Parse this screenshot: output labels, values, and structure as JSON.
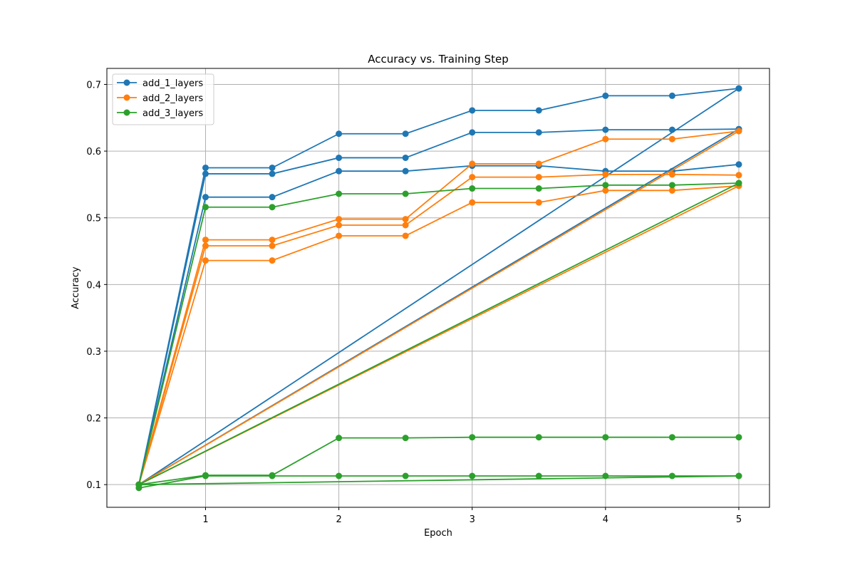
{
  "chart_data": {
    "type": "line",
    "title": "Accuracy vs. Training Step",
    "xlabel": "Epoch",
    "ylabel": "Accuracy",
    "xlim": [
      0.26,
      5.23
    ],
    "ylim": [
      0.066,
      0.724
    ],
    "xticks": [
      1,
      2,
      3,
      4,
      5
    ],
    "yticks": [
      0.1,
      0.2,
      0.3,
      0.4,
      0.5,
      0.6,
      0.7
    ],
    "grid": true,
    "legend_placement": "top-left",
    "legend": [
      {
        "label": "add_1_layers",
        "color": "#1f77b4"
      },
      {
        "label": "add_2_layers",
        "color": "#ff7f0e"
      },
      {
        "label": "add_3_layers",
        "color": "#2ca02c"
      }
    ],
    "series": [
      {
        "group": "add_1_layers",
        "color": "#1f77b4",
        "x": [
          0.5,
          1,
          1.5,
          2,
          2.5,
          3,
          3.5,
          4,
          4.5,
          5
        ],
        "y": [
          0.1,
          0.575,
          0.575,
          0.626,
          0.626,
          0.661,
          0.661,
          0.683,
          0.683,
          0.694
        ]
      },
      {
        "group": "add_1_layers",
        "color": "#1f77b4",
        "x": [
          0.5,
          1,
          1.5,
          2,
          2.5,
          3,
          3.5,
          4,
          4.5,
          5
        ],
        "y": [
          0.1,
          0.566,
          0.566,
          0.59,
          0.59,
          0.628,
          0.628,
          0.632,
          0.632,
          0.633
        ]
      },
      {
        "group": "add_1_layers",
        "color": "#1f77b4",
        "x": [
          0.5,
          1,
          1.5,
          2,
          2.5,
          3,
          3.5,
          4,
          4.5,
          5
        ],
        "y": [
          0.1,
          0.531,
          0.531,
          0.57,
          0.57,
          0.578,
          0.578,
          0.57,
          0.57,
          0.58
        ]
      },
      {
        "group": "add_1_layers",
        "color": "#1f77b4",
        "x": [
          0.5,
          5
        ],
        "y": [
          0.1,
          0.694
        ]
      },
      {
        "group": "add_1_layers",
        "color": "#1f77b4",
        "x": [
          0.5,
          5
        ],
        "y": [
          0.1,
          0.633
        ]
      },
      {
        "group": "add_2_layers",
        "color": "#ff7f0e",
        "x": [
          0.5,
          1,
          1.5,
          2,
          2.5,
          3,
          3.5,
          4,
          4.5,
          5
        ],
        "y": [
          0.1,
          0.467,
          0.467,
          0.498,
          0.498,
          0.581,
          0.581,
          0.618,
          0.618,
          0.63
        ]
      },
      {
        "group": "add_2_layers",
        "color": "#ff7f0e",
        "x": [
          0.5,
          1,
          1.5,
          2,
          2.5,
          3,
          3.5,
          4,
          4.5,
          5
        ],
        "y": [
          0.1,
          0.458,
          0.458,
          0.489,
          0.489,
          0.561,
          0.561,
          0.565,
          0.565,
          0.564
        ]
      },
      {
        "group": "add_2_layers",
        "color": "#ff7f0e",
        "x": [
          0.5,
          1,
          1.5,
          2,
          2.5,
          3,
          3.5,
          4,
          4.5,
          5
        ],
        "y": [
          0.1,
          0.436,
          0.436,
          0.473,
          0.473,
          0.523,
          0.523,
          0.541,
          0.541,
          0.548
        ]
      },
      {
        "group": "add_2_layers",
        "color": "#ff7f0e",
        "x": [
          0.5,
          5
        ],
        "y": [
          0.1,
          0.63
        ]
      },
      {
        "group": "add_2_layers",
        "color": "#ff7f0e",
        "x": [
          0.5,
          5
        ],
        "y": [
          0.1,
          0.548
        ]
      },
      {
        "group": "add_3_layers",
        "color": "#2ca02c",
        "x": [
          0.5,
          1,
          1.5,
          2,
          2.5,
          3,
          3.5,
          4,
          4.5,
          5
        ],
        "y": [
          0.1,
          0.516,
          0.516,
          0.536,
          0.536,
          0.544,
          0.544,
          0.549,
          0.549,
          0.552
        ]
      },
      {
        "group": "add_3_layers",
        "color": "#2ca02c",
        "x": [
          0.5,
          1,
          1.5,
          2,
          2.5,
          3,
          3.5,
          4,
          4.5,
          5
        ],
        "y": [
          0.1,
          0.114,
          0.114,
          0.17,
          0.17,
          0.171,
          0.171,
          0.171,
          0.171,
          0.171
        ]
      },
      {
        "group": "add_3_layers",
        "color": "#2ca02c",
        "x": [
          0.5,
          1,
          1.5,
          2,
          2.5,
          3,
          3.5,
          4,
          4.5,
          5
        ],
        "y": [
          0.095,
          0.113,
          0.113,
          0.113,
          0.113,
          0.113,
          0.113,
          0.113,
          0.113,
          0.113
        ]
      },
      {
        "group": "add_3_layers",
        "color": "#2ca02c",
        "x": [
          0.5,
          5
        ],
        "y": [
          0.1,
          0.552
        ]
      },
      {
        "group": "add_3_layers",
        "color": "#2ca02c",
        "x": [
          0.5,
          5
        ],
        "y": [
          0.1,
          0.113
        ]
      }
    ]
  }
}
